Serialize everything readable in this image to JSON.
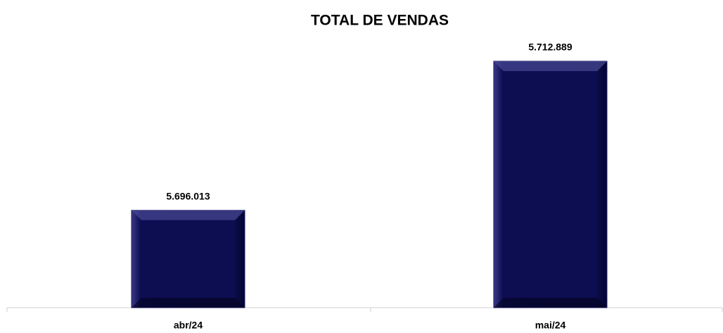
{
  "chart_data": {
    "type": "bar",
    "title": "TOTAL DE VENDAS",
    "categories": [
      "abr/24",
      "mai/24"
    ],
    "values": [
      5696013,
      5712889
    ],
    "value_labels": [
      "5.696.013",
      "5.712.889"
    ],
    "color": "#0d0d52",
    "ylim": [
      5685000,
      5715000
    ]
  }
}
